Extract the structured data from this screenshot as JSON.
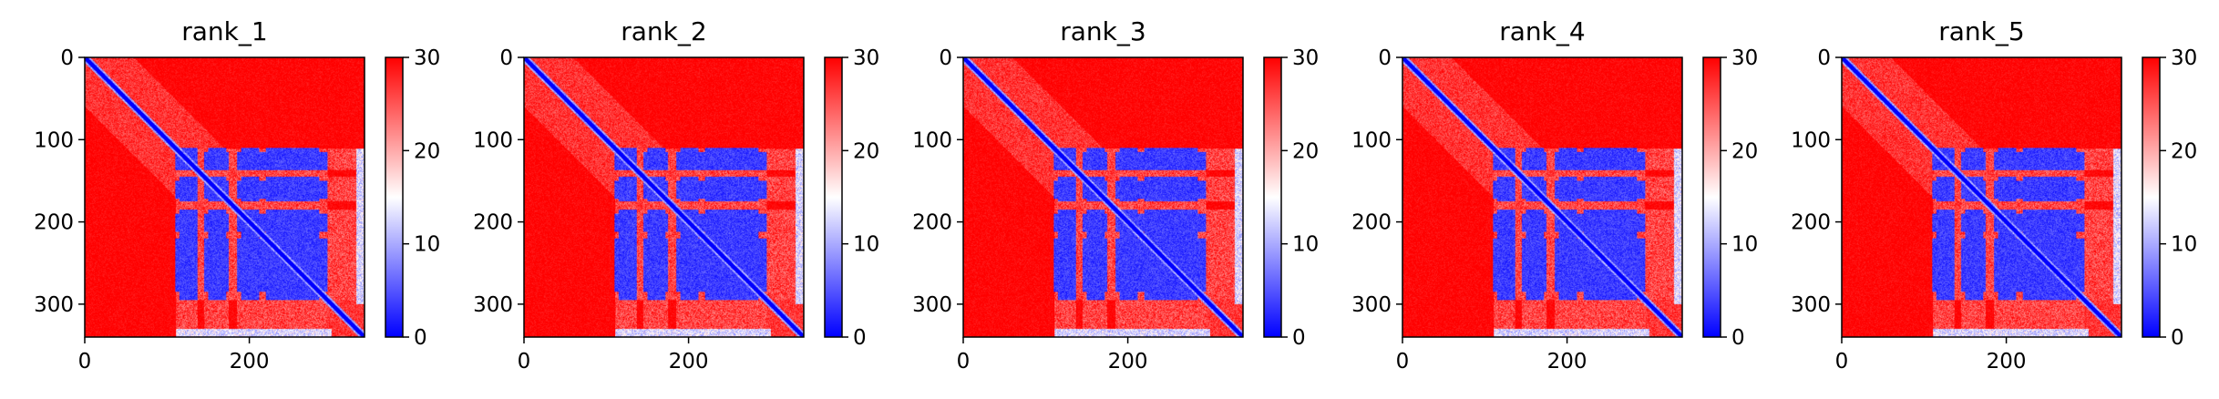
{
  "chart_data": {
    "type": "heatmap",
    "panel_count": 5,
    "matrix_size": 340,
    "colormap": "bwr",
    "color_range": [
      0,
      30
    ],
    "colorbar_ticks": [
      0,
      10,
      20,
      30
    ],
    "x_ticks": [
      0,
      200
    ],
    "y_ticks": [
      0,
      100,
      200,
      300
    ],
    "panels": [
      {
        "title": "rank_1"
      },
      {
        "title": "rank_2"
      },
      {
        "title": "rank_3"
      },
      {
        "title": "rank_4"
      },
      {
        "title": "rank_5"
      }
    ],
    "structure": {
      "diagonal_value": 0,
      "background_value": 30,
      "low_block_ranges": [
        [
          115,
          137
        ],
        [
          150,
          172
        ],
        [
          190,
          212
        ],
        [
          220,
          285
        ]
      ],
      "low_block_columns": [
        [
          110,
          135
        ],
        [
          145,
          175
        ],
        [
          185,
          295
        ]
      ],
      "edge_strip_columns": [
        [
          330,
          340
        ]
      ]
    }
  }
}
